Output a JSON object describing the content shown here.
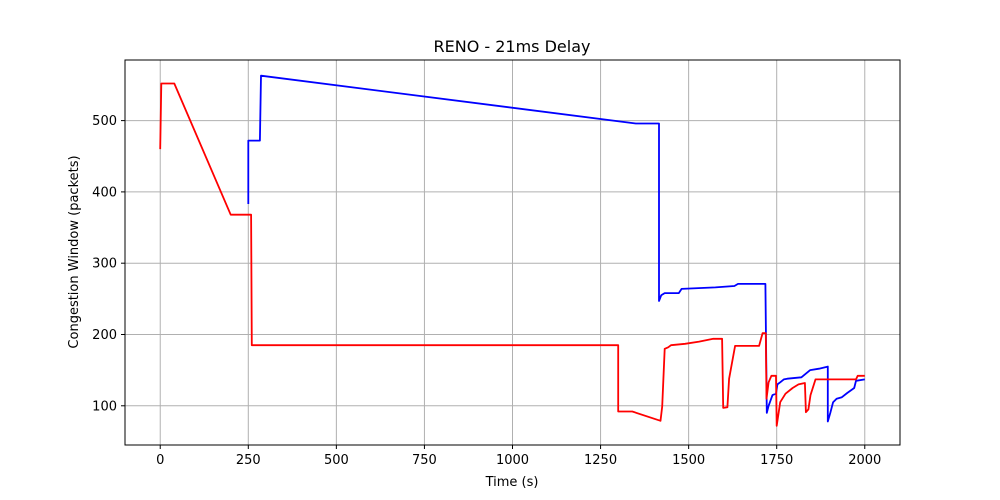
{
  "chart_data": {
    "type": "line",
    "title": "RENO - 21ms Delay",
    "xlabel": "Time (s)",
    "ylabel": "Congestion Window (packets)",
    "xlim": [
      -100,
      2100
    ],
    "ylim": [
      45,
      585
    ],
    "xticks": [
      0,
      250,
      500,
      750,
      1000,
      1250,
      1500,
      1750,
      2000
    ],
    "yticks": [
      100,
      200,
      300,
      400,
      500
    ],
    "grid": true,
    "series": [
      {
        "color": "#0000ff",
        "points": [
          [
            250,
            383
          ],
          [
            250,
            472
          ],
          [
            283,
            472
          ],
          [
            286,
            563
          ],
          [
            1350,
            496
          ],
          [
            1412,
            496
          ],
          [
            1416,
            496
          ],
          [
            1416,
            247
          ],
          [
            1422,
            255
          ],
          [
            1432,
            258
          ],
          [
            1472,
            258
          ],
          [
            1480,
            264
          ],
          [
            1576,
            266
          ],
          [
            1630,
            268
          ],
          [
            1640,
            271
          ],
          [
            1700,
            271
          ],
          [
            1718,
            271
          ],
          [
            1722,
            90
          ],
          [
            1727,
            100
          ],
          [
            1738,
            115
          ],
          [
            1748,
            117
          ],
          [
            1752,
            130
          ],
          [
            1760,
            133
          ],
          [
            1770,
            137
          ],
          [
            1780,
            138
          ],
          [
            1820,
            140
          ],
          [
            1845,
            150
          ],
          [
            1870,
            152
          ],
          [
            1895,
            155
          ],
          [
            1895,
            78
          ],
          [
            1902,
            90
          ],
          [
            1910,
            105
          ],
          [
            1920,
            110
          ],
          [
            1935,
            112
          ],
          [
            1950,
            118
          ],
          [
            1970,
            125
          ],
          [
            1975,
            135
          ],
          [
            2000,
            137
          ]
        ]
      },
      {
        "color": "#ff0000",
        "points": [
          [
            0,
            460
          ],
          [
            3,
            552
          ],
          [
            40,
            552
          ],
          [
            200,
            368
          ],
          [
            258,
            368
          ],
          [
            260,
            185
          ],
          [
            1300,
            185
          ],
          [
            1300,
            92
          ],
          [
            1340,
            92
          ],
          [
            1420,
            79
          ],
          [
            1425,
            99
          ],
          [
            1432,
            180
          ],
          [
            1442,
            182
          ],
          [
            1450,
            185
          ],
          [
            1490,
            187
          ],
          [
            1530,
            190
          ],
          [
            1570,
            194
          ],
          [
            1595,
            194
          ],
          [
            1598,
            97
          ],
          [
            1610,
            98
          ],
          [
            1615,
            138
          ],
          [
            1632,
            184
          ],
          [
            1700,
            184
          ],
          [
            1710,
            202
          ],
          [
            1719,
            202
          ],
          [
            1721,
            110
          ],
          [
            1727,
            133
          ],
          [
            1735,
            142
          ],
          [
            1748,
            142
          ],
          [
            1750,
            72
          ],
          [
            1760,
            105
          ],
          [
            1775,
            117
          ],
          [
            1795,
            125
          ],
          [
            1812,
            130
          ],
          [
            1830,
            132
          ],
          [
            1833,
            91
          ],
          [
            1840,
            95
          ],
          [
            1846,
            115
          ],
          [
            1860,
            137
          ],
          [
            1975,
            137
          ],
          [
            1980,
            142
          ],
          [
            2000,
            142
          ]
        ]
      }
    ]
  }
}
